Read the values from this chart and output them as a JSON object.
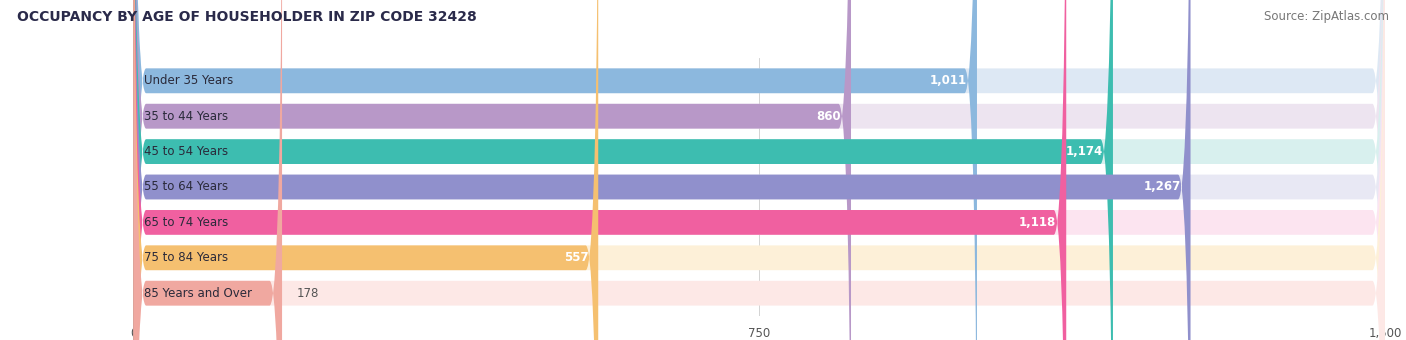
{
  "title": "OCCUPANCY BY AGE OF HOUSEHOLDER IN ZIP CODE 32428",
  "source": "Source: ZipAtlas.com",
  "categories": [
    "Under 35 Years",
    "35 to 44 Years",
    "45 to 54 Years",
    "55 to 64 Years",
    "65 to 74 Years",
    "75 to 84 Years",
    "85 Years and Over"
  ],
  "values": [
    1011,
    860,
    1174,
    1267,
    1118,
    557,
    178
  ],
  "bar_colors": [
    "#8cb8de",
    "#b898c8",
    "#3dbdb0",
    "#9090cc",
    "#f060a0",
    "#f5c070",
    "#f0a8a0"
  ],
  "bar_bg_colors": [
    "#dde8f4",
    "#ede4f0",
    "#d8f0ee",
    "#e8e8f4",
    "#fce4f0",
    "#fdf0d8",
    "#fde8e6"
  ],
  "xlim": [
    0,
    1500
  ],
  "xticks": [
    0,
    750,
    1500
  ],
  "xtick_labels": [
    "0",
    "750",
    "1,500"
  ],
  "value_labels": [
    "1,011",
    "860",
    "1,174",
    "1,267",
    "1,118",
    "557",
    "178"
  ],
  "title_fontsize": 10,
  "source_fontsize": 8.5,
  "label_fontsize": 8.5,
  "value_fontsize": 8.5,
  "background_color": "#ffffff",
  "plot_bg_color": "#f5f5f8"
}
